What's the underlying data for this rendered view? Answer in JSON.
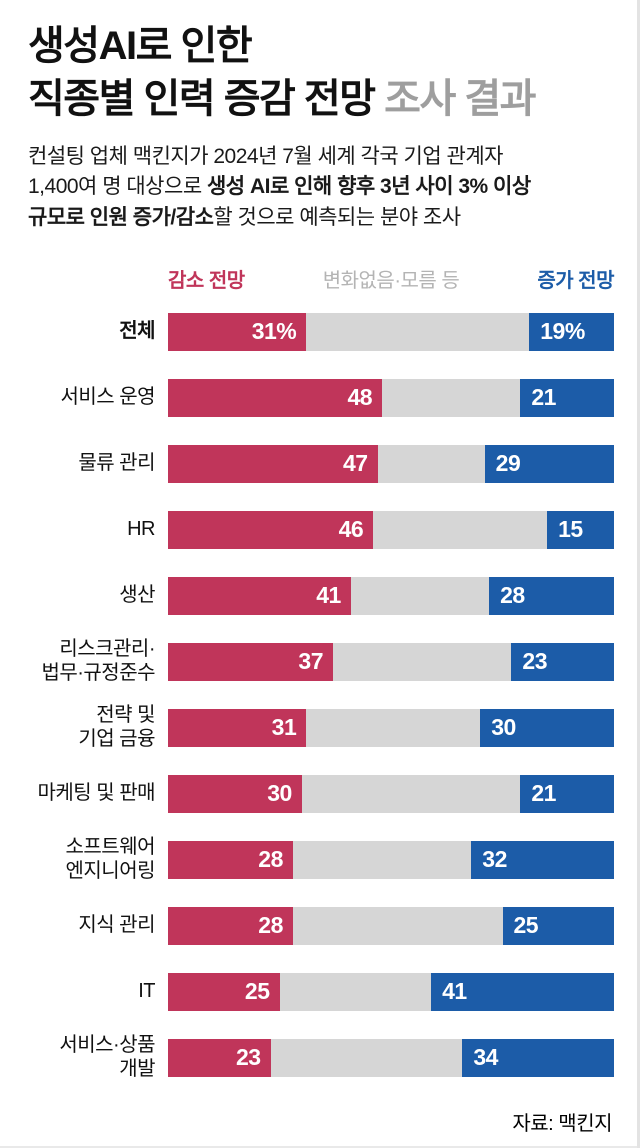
{
  "title": {
    "line1": "생성AI로 인한",
    "line2_main": "직종별 인력 증감 전망",
    "line2_sub": " 조사 결과"
  },
  "subtitle": {
    "lines": [
      [
        {
          "text": "컨설팅 업체 맥킨지가 2024년 7월 세계 각국 기업 관계자",
          "bold": false
        }
      ],
      [
        {
          "text": "1,400여 명 대상으로 ",
          "bold": false
        },
        {
          "text": "생성 AI로 인해 향후 3년 사이 3% 이상",
          "bold": true
        }
      ],
      [
        {
          "text": "규모로 인원 증가/감소",
          "bold": true
        },
        {
          "text": "할 것으로 예측되는 분야 조사",
          "bold": false
        }
      ]
    ]
  },
  "colors": {
    "decrease": "#c0355a",
    "neutral_bar": "#d6d6d6",
    "increase": "#1c5ca8",
    "title_sub_gray": "#9e9e9e",
    "legend_neutral_text": "#b4b4b4",
    "value_text": "#ffffff"
  },
  "chart_data": {
    "type": "bar",
    "orientation": "horizontal",
    "stacked": true,
    "unit": "%",
    "xlim": [
      0,
      100
    ],
    "title": "생성AI로 인한 직종별 인력 증감 전망 조사 결과",
    "legend": [
      {
        "label": "감소 전망",
        "key": "decrease"
      },
      {
        "label": "변화없음·모름 등",
        "key": "neutral"
      },
      {
        "label": "증가 전망",
        "key": "increase"
      }
    ],
    "categories": [
      "전체",
      "서비스 운영",
      "물류 관리",
      "HR",
      "생산",
      "리스크관리·법무·규정준수",
      "전략 및 기업 금융",
      "마케팅 및 판매",
      "소프트웨어 엔지니어링",
      "지식 관리",
      "IT",
      "서비스·상품 개발"
    ],
    "series": [
      {
        "name": "감소 전망",
        "values": [
          31,
          48,
          47,
          46,
          41,
          37,
          31,
          30,
          28,
          28,
          25,
          23
        ]
      },
      {
        "name": "변화없음·모름 등",
        "values": [
          50,
          31,
          24,
          39,
          31,
          40,
          39,
          49,
          40,
          47,
          34,
          43
        ]
      },
      {
        "name": "증가 전망",
        "values": [
          19,
          21,
          29,
          15,
          28,
          23,
          30,
          21,
          32,
          25,
          41,
          34
        ]
      }
    ],
    "rows": [
      {
        "label_lines": [
          "전체"
        ],
        "bold": true,
        "decrease": 31,
        "increase": 19,
        "decrease_text": "31%",
        "increase_text": "19%"
      },
      {
        "label_lines": [
          "서비스 운영"
        ],
        "bold": false,
        "decrease": 48,
        "increase": 21,
        "decrease_text": "48",
        "increase_text": "21"
      },
      {
        "label_lines": [
          "물류 관리"
        ],
        "bold": false,
        "decrease": 47,
        "increase": 29,
        "decrease_text": "47",
        "increase_text": "29"
      },
      {
        "label_lines": [
          "HR"
        ],
        "bold": false,
        "decrease": 46,
        "increase": 15,
        "decrease_text": "46",
        "increase_text": "15"
      },
      {
        "label_lines": [
          "생산"
        ],
        "bold": false,
        "decrease": 41,
        "increase": 28,
        "decrease_text": "41",
        "increase_text": "28"
      },
      {
        "label_lines": [
          "리스크관리·",
          "법무·규정준수"
        ],
        "bold": false,
        "decrease": 37,
        "increase": 23,
        "decrease_text": "37",
        "increase_text": "23"
      },
      {
        "label_lines": [
          "전략 및",
          "기업 금융"
        ],
        "bold": false,
        "decrease": 31,
        "increase": 30,
        "decrease_text": "31",
        "increase_text": "30"
      },
      {
        "label_lines": [
          "마케팅 및 판매"
        ],
        "bold": false,
        "decrease": 30,
        "increase": 21,
        "decrease_text": "30",
        "increase_text": "21"
      },
      {
        "label_lines": [
          "소프트웨어",
          "엔지니어링"
        ],
        "bold": false,
        "decrease": 28,
        "increase": 32,
        "decrease_text": "28",
        "increase_text": "32"
      },
      {
        "label_lines": [
          "지식 관리"
        ],
        "bold": false,
        "decrease": 28,
        "increase": 25,
        "decrease_text": "28",
        "increase_text": "25"
      },
      {
        "label_lines": [
          "IT"
        ],
        "bold": false,
        "decrease": 25,
        "increase": 41,
        "decrease_text": "25",
        "increase_text": "41"
      },
      {
        "label_lines": [
          "서비스·상품",
          "개발"
        ],
        "bold": false,
        "decrease": 23,
        "increase": 34,
        "decrease_text": "23",
        "increase_text": "34"
      }
    ]
  },
  "footer": {
    "source": "자료: 맥킨지"
  }
}
